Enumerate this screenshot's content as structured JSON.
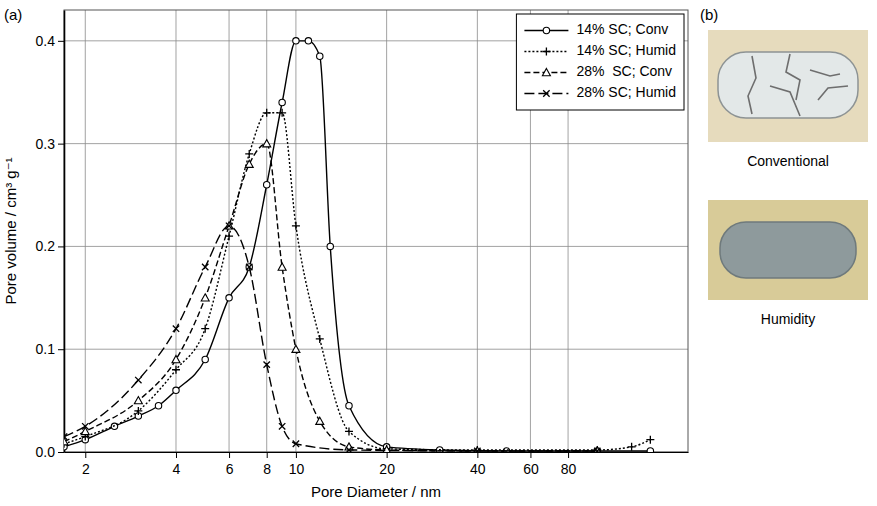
{
  "chart_data": {
    "type": "line",
    "panel_label": "(a)",
    "x_label": "Pore Diameter / nm",
    "y_label": "Pore volume / cm³ g⁻¹",
    "log": "x",
    "grid": true,
    "legend": "top-right",
    "xlim": [
      1.7,
      200
    ],
    "ylim": [
      0,
      0.43
    ],
    "xticks": [
      2,
      4,
      6,
      8,
      10,
      20,
      40,
      60,
      80
    ],
    "yticks": [
      {
        "value": 0,
        "label": "0.0"
      },
      {
        "value": 0.1,
        "label": "0.1"
      },
      {
        "value": 0.2,
        "label": "0.2"
      },
      {
        "value": 0.3,
        "label": "0.3"
      },
      {
        "value": 0.4,
        "label": "0.4"
      }
    ],
    "series": [
      {
        "name": "14% SC; Conv",
        "color": "#000000",
        "marker": "circle",
        "line_style": "solid",
        "x": [
          1.7,
          2,
          2.5,
          3,
          3.5,
          4,
          5,
          6,
          7,
          8,
          9,
          10,
          11,
          12,
          13,
          15,
          20,
          30,
          50,
          100,
          150
        ],
        "values": [
          0.005,
          0.012,
          0.025,
          0.035,
          0.045,
          0.06,
          0.09,
          0.15,
          0.18,
          0.26,
          0.34,
          0.4,
          0.4,
          0.385,
          0.2,
          0.045,
          0.005,
          0.002,
          0.001,
          0.001,
          0.001
        ]
      },
      {
        "name": "14% SC; Humid",
        "color": "#000000",
        "marker": "plus",
        "line_style": "dotted",
        "x": [
          1.7,
          2,
          3,
          4,
          5,
          6,
          7,
          8,
          9,
          10,
          12,
          15,
          20,
          40,
          100,
          130,
          150
        ],
        "values": [
          0.008,
          0.015,
          0.04,
          0.08,
          0.12,
          0.21,
          0.29,
          0.33,
          0.33,
          0.22,
          0.11,
          0.02,
          0.003,
          0.002,
          0.002,
          0.005,
          0.012
        ]
      },
      {
        "name": "28%  SC; Conv",
        "color": "#000000",
        "marker": "triangle",
        "line_style": "dashed",
        "x": [
          1.7,
          2,
          3,
          4,
          5,
          6,
          7,
          8,
          9,
          10,
          12,
          15,
          20,
          40,
          100
        ],
        "values": [
          0.01,
          0.02,
          0.05,
          0.09,
          0.15,
          0.22,
          0.28,
          0.3,
          0.18,
          0.1,
          0.03,
          0.005,
          0.002,
          0.001,
          0.001
        ]
      },
      {
        "name": "28% SC; Humid",
        "color": "#000000",
        "marker": "x",
        "line_style": "long-dash",
        "x": [
          1.7,
          2,
          3,
          4,
          5,
          6,
          7,
          8,
          9,
          10,
          15,
          40,
          100
        ],
        "values": [
          0.015,
          0.025,
          0.07,
          0.12,
          0.18,
          0.22,
          0.18,
          0.085,
          0.025,
          0.008,
          0.002,
          0.001,
          0.001
        ]
      }
    ]
  },
  "photos": {
    "label": "(b)",
    "captions": [
      "Conventional",
      "Humidity"
    ]
  }
}
